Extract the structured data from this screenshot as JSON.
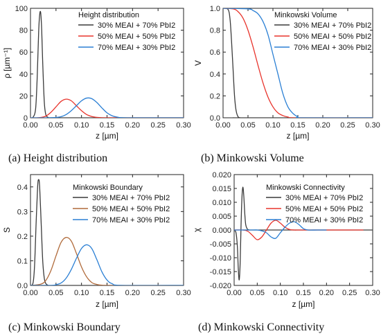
{
  "colors": {
    "black": "#3a3a3a",
    "red": "#e8332b",
    "blue": "#2a7fd4",
    "brown": "#b06a3a"
  },
  "chart_data": [
    {
      "type": "line",
      "caption": "(a) Height distribution",
      "legend_title": "Height distribution",
      "xlabel": "z [µm]",
      "ylabel": "ρ [µm⁻¹]",
      "xlim": [
        0,
        0.3
      ],
      "ylim": [
        0,
        100
      ],
      "xticks": [
        0.0,
        0.05,
        0.1,
        0.15,
        0.2,
        0.25,
        0.3
      ],
      "xticklabels": [
        "0.00",
        "0.05",
        "0.10",
        "0.15",
        "0.20",
        "0.25",
        "0.30"
      ],
      "yticks": [
        0,
        20,
        40,
        60,
        80,
        100
      ],
      "yticklabels": [
        "0",
        "20",
        "40",
        "60",
        "80",
        "100"
      ],
      "series": [
        {
          "name": "30% MEAI + 70% PbI2",
          "color": "#3a3a3a",
          "x": [
            0.0,
            0.005,
            0.01,
            0.013,
            0.016,
            0.018,
            0.02,
            0.022,
            0.024,
            0.027,
            0.03,
            0.035,
            0.04,
            0.05,
            0.1,
            0.2,
            0.3
          ],
          "y": [
            0,
            0.5,
            8,
            35,
            78,
            94,
            96,
            80,
            50,
            15,
            3,
            0.2,
            0,
            0,
            0,
            0,
            0
          ]
        },
        {
          "name": "50% MEAI + 50% PbI2",
          "color": "#e8332b",
          "x": [
            0.0,
            0.01,
            0.02,
            0.03,
            0.04,
            0.05,
            0.06,
            0.07,
            0.08,
            0.09,
            0.1,
            0.11,
            0.12,
            0.13,
            0.14,
            0.16,
            0.2,
            0.3
          ],
          "y": [
            0,
            0,
            0.3,
            1.5,
            5,
            10,
            15,
            17,
            15.5,
            11,
            6.5,
            3,
            1.2,
            0.4,
            0.1,
            0,
            0,
            0
          ]
        },
        {
          "name": "70% MEAI + 30% PbI2",
          "color": "#2a7fd4",
          "x": [
            0.0,
            0.03,
            0.05,
            0.06,
            0.07,
            0.08,
            0.09,
            0.1,
            0.11,
            0.12,
            0.13,
            0.14,
            0.15,
            0.16,
            0.17,
            0.19,
            0.3
          ],
          "y": [
            0,
            0,
            0.3,
            1,
            3,
            6.5,
            11,
            15.5,
            18,
            17.5,
            14,
            9,
            4.5,
            1.8,
            0.6,
            0,
            0
          ]
        }
      ]
    },
    {
      "type": "line",
      "caption": "(b) Minkowski Volume",
      "legend_title": "Minkowski Volume",
      "xlabel": "z [µm]",
      "ylabel": "V",
      "xlim": [
        0,
        0.3
      ],
      "ylim": [
        0,
        1.0
      ],
      "xticks": [
        0.0,
        0.05,
        0.1,
        0.15,
        0.2,
        0.25,
        0.3
      ],
      "xticklabels": [
        "0.00",
        "0.05",
        "0.10",
        "0.15",
        "0.20",
        "0.25",
        "0.30"
      ],
      "yticks": [
        0.0,
        0.2,
        0.4,
        0.6,
        0.8,
        1.0
      ],
      "yticklabels": [
        "0.0",
        "0.2",
        "0.4",
        "0.6",
        "0.8",
        "1.0"
      ],
      "series": [
        {
          "name": "30% MEAI + 70% PbI2",
          "color": "#3a3a3a",
          "x": [
            0.0,
            0.01,
            0.014,
            0.017,
            0.02,
            0.023,
            0.026,
            0.03,
            0.035,
            0.04,
            0.3
          ],
          "y": [
            1.0,
            0.99,
            0.9,
            0.7,
            0.45,
            0.2,
            0.07,
            0.01,
            0,
            0,
            0
          ]
        },
        {
          "name": "50% MEAI + 50% PbI2",
          "color": "#e8332b",
          "x": [
            0.0,
            0.02,
            0.03,
            0.04,
            0.05,
            0.06,
            0.07,
            0.08,
            0.09,
            0.1,
            0.11,
            0.12,
            0.13,
            0.15,
            0.3
          ],
          "y": [
            1.0,
            0.995,
            0.97,
            0.91,
            0.8,
            0.65,
            0.48,
            0.32,
            0.19,
            0.1,
            0.045,
            0.02,
            0.007,
            0,
            0
          ]
        },
        {
          "name": "70% MEAI + 30% PbI2",
          "color": "#2a7fd4",
          "x": [
            0.0,
            0.05,
            0.06,
            0.07,
            0.08,
            0.09,
            0.1,
            0.11,
            0.12,
            0.13,
            0.14,
            0.15,
            0.16,
            0.3
          ],
          "y": [
            1.0,
            0.995,
            0.98,
            0.95,
            0.88,
            0.76,
            0.58,
            0.4,
            0.22,
            0.1,
            0.04,
            0.01,
            0,
            0
          ]
        }
      ]
    },
    {
      "type": "line",
      "caption": "(c) Minkowski Boundary",
      "legend_title": "Minkowski Boundary",
      "xlabel": "z [µm]",
      "ylabel": "S",
      "xlim": [
        0,
        0.3
      ],
      "ylim": [
        0,
        0.45
      ],
      "xticks": [
        0.0,
        0.05,
        0.1,
        0.15,
        0.2,
        0.25,
        0.3
      ],
      "xticklabels": [
        "0.00",
        "0.05",
        "0.10",
        "0.15",
        "0.20",
        "0.25",
        "0.30"
      ],
      "yticks": [
        0.0,
        0.1,
        0.2,
        0.3,
        0.4
      ],
      "yticklabels": [
        "0.0",
        "0.1",
        "0.2",
        "0.3",
        "0.4"
      ],
      "series": [
        {
          "name": "30% MEAI + 70% PbI2",
          "color": "#3a3a3a",
          "x": [
            0.0,
            0.005,
            0.008,
            0.011,
            0.014,
            0.016,
            0.018,
            0.021,
            0.024,
            0.027,
            0.03,
            0.035,
            0.04,
            0.3
          ],
          "y": [
            0,
            0.01,
            0.08,
            0.25,
            0.4,
            0.43,
            0.4,
            0.25,
            0.1,
            0.03,
            0.008,
            0,
            0,
            0
          ]
        },
        {
          "name": "50% MEAI + 50% PbI2",
          "color": "#b06a3a",
          "x": [
            0.0,
            0.02,
            0.03,
            0.04,
            0.05,
            0.06,
            0.07,
            0.08,
            0.09,
            0.1,
            0.11,
            0.12,
            0.13,
            0.14,
            0.16,
            0.3
          ],
          "y": [
            0,
            0.005,
            0.02,
            0.06,
            0.12,
            0.175,
            0.195,
            0.18,
            0.13,
            0.075,
            0.035,
            0.012,
            0.004,
            0.001,
            0,
            0
          ]
        },
        {
          "name": "70% MEAI + 30% PbI2",
          "color": "#2a7fd4",
          "x": [
            0.0,
            0.04,
            0.05,
            0.06,
            0.07,
            0.08,
            0.09,
            0.1,
            0.11,
            0.12,
            0.13,
            0.14,
            0.15,
            0.16,
            0.18,
            0.3
          ],
          "y": [
            0,
            0,
            0.003,
            0.01,
            0.03,
            0.065,
            0.11,
            0.15,
            0.165,
            0.15,
            0.105,
            0.055,
            0.022,
            0.007,
            0,
            0
          ]
        }
      ]
    },
    {
      "type": "line",
      "caption": "(d) Minkowski Connectivity",
      "legend_title": "Minkowski Connectivity",
      "xlabel": "z [µm]",
      "ylabel": "χ",
      "xlim": [
        0,
        0.3
      ],
      "ylim": [
        -0.02,
        0.02
      ],
      "xticks": [
        0.0,
        0.05,
        0.1,
        0.15,
        0.2,
        0.25,
        0.3
      ],
      "xticklabels": [
        "0.00",
        "0.05",
        "0.10",
        "0.15",
        "0.20",
        "0.25",
        "0.30"
      ],
      "yticks": [
        -0.02,
        -0.015,
        -0.01,
        -0.005,
        0.0,
        0.005,
        0.01,
        0.015,
        0.02
      ],
      "yticklabels": [
        "-0.020",
        "-0.015",
        "-0.010",
        "-0.005",
        "0.000",
        "0.005",
        "0.010",
        "0.015",
        "0.020"
      ],
      "series": [
        {
          "name": "30% MEAI + 70% PbI2",
          "color": "#3a3a3a",
          "x": [
            0.0,
            0.004,
            0.007,
            0.009,
            0.011,
            0.013,
            0.015,
            0.017,
            0.019,
            0.021,
            0.023,
            0.025,
            0.028,
            0.031,
            0.035,
            0.04,
            0.3
          ],
          "y": [
            0,
            -0.001,
            -0.006,
            -0.014,
            -0.018,
            -0.012,
            0.002,
            0.012,
            0.0155,
            0.012,
            0.006,
            0.002,
            0.0005,
            0.0001,
            0,
            0,
            0
          ]
        },
        {
          "name": "50% MEAI + 50% PbI2",
          "color": "#e8332b",
          "x": [
            0.0,
            0.02,
            0.03,
            0.04,
            0.05,
            0.06,
            0.07,
            0.08,
            0.09,
            0.1,
            0.11,
            0.12,
            0.13,
            0.14,
            0.16,
            0.28
          ],
          "y": [
            0,
            0,
            -0.0005,
            -0.002,
            -0.0035,
            -0.0025,
            0.0,
            0.0025,
            0.0035,
            0.0025,
            0.001,
            0.0002,
            0,
            0,
            0,
            0
          ]
        },
        {
          "name": "70% MEAI + 30% PbI2",
          "color": "#2a7fd4",
          "x": [
            0.0,
            0.04,
            0.05,
            0.06,
            0.07,
            0.08,
            0.09,
            0.1,
            0.11,
            0.12,
            0.13,
            0.14,
            0.15,
            0.16,
            0.18,
            0.2
          ],
          "y": [
            0,
            0,
            0,
            -0.0003,
            -0.001,
            -0.0025,
            -0.003,
            -0.001,
            0.001,
            0.0025,
            0.003,
            0.002,
            0.0005,
            0,
            0,
            0
          ]
        }
      ]
    }
  ]
}
